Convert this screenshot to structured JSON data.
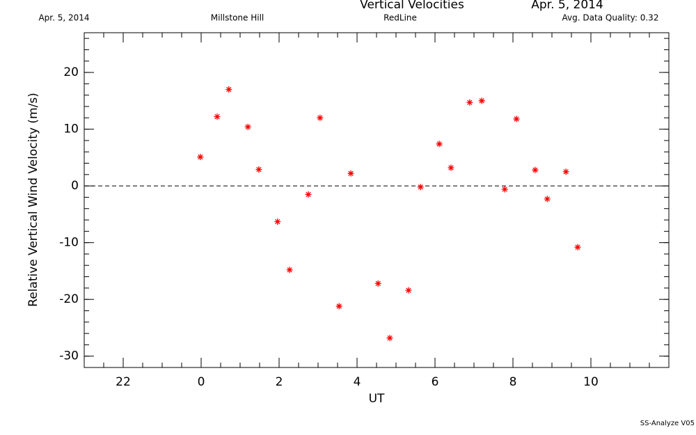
{
  "chart_data": {
    "type": "scatter",
    "title": "Vertical Velocities",
    "date_left": "Apr. 5, 2014",
    "date_right": "Apr. 5, 2014",
    "site": "Millstone Hill",
    "emission": "RedLine",
    "quality": "Avg. Data Quality: 0.32",
    "footer": "SS-Analyze V05",
    "xlabel": "UT",
    "ylabel": "Relative Vertical Wind Velocity (m/s)",
    "xlim": [
      -3,
      12
    ],
    "ylim": [
      -32,
      27
    ],
    "xticks": [
      {
        "value": -2,
        "label": "22"
      },
      0,
      2,
      4,
      6,
      8,
      10
    ],
    "yticks": [
      -30,
      -20,
      -10,
      0,
      10,
      20
    ],
    "reference_line": 0,
    "color": "#ff0000",
    "x": [
      -0.02,
      0.41,
      0.71,
      1.2,
      1.48,
      1.96,
      2.27,
      2.75,
      3.05,
      3.54,
      3.84,
      4.54,
      4.84,
      5.32,
      5.63,
      6.11,
      6.41,
      6.89,
      7.2,
      7.79,
      8.09,
      8.57,
      8.88,
      9.36,
      9.66
    ],
    "values": [
      5.1,
      12.2,
      17.0,
      10.4,
      2.9,
      -6.3,
      -14.8,
      -1.5,
      12.0,
      -21.2,
      2.2,
      -17.2,
      -26.8,
      -18.4,
      -0.2,
      7.4,
      3.2,
      14.7,
      15.0,
      -0.6,
      11.8,
      2.8,
      -2.3,
      2.5,
      -10.8
    ]
  }
}
